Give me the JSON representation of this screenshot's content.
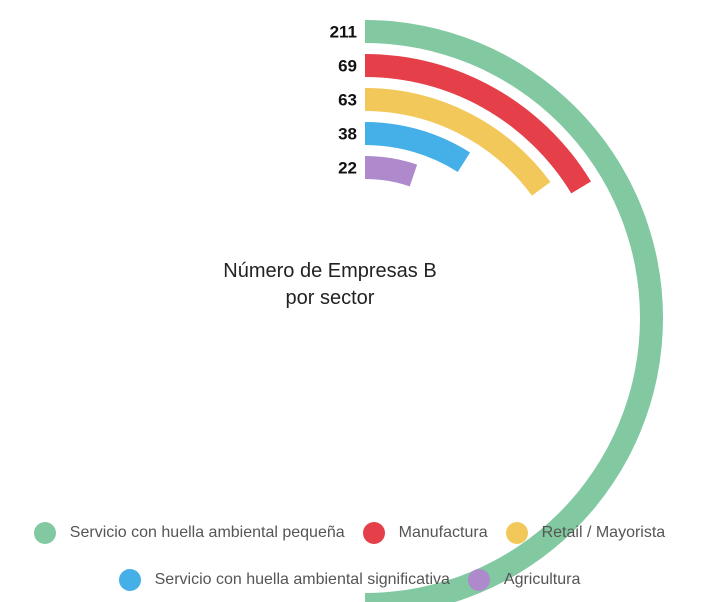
{
  "chart_data": {
    "type": "radial-bar",
    "title": "Número de Empresas B por sector",
    "title_lines": [
      "Número de Empresas B",
      "por sector"
    ],
    "categories": [
      "Servicio con huella ambiental pequeña",
      "Manufactura",
      "Retail / Mayorista",
      "Servicio con huella ambiental significativa",
      "Agricultura"
    ],
    "values": [
      211,
      69,
      63,
      38,
      22
    ],
    "colors": [
      "#82c9a2",
      "#e5404a",
      "#f2c85a",
      "#45b0e8",
      "#ae89cc"
    ],
    "value_max": 211,
    "legend_position": "bottom"
  }
}
